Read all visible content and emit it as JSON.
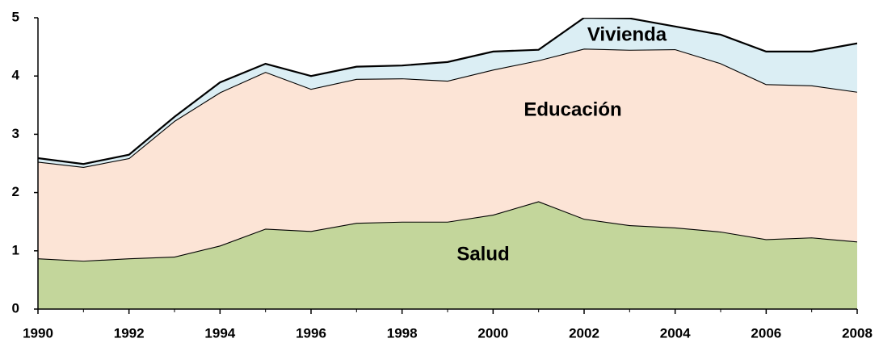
{
  "chart_data": {
    "type": "stacked_area",
    "x": [
      1990,
      1991,
      1992,
      1993,
      1994,
      1995,
      1996,
      1997,
      1998,
      1999,
      2000,
      2001,
      2002,
      2003,
      2004,
      2005,
      2006,
      2007,
      2008
    ],
    "series": [
      {
        "name": "Salud",
        "color": "#c3d69b",
        "values": [
          0.87,
          0.83,
          0.87,
          0.9,
          1.09,
          1.38,
          1.34,
          1.48,
          1.5,
          1.5,
          1.62,
          1.85,
          1.55,
          1.44,
          1.4,
          1.33,
          1.2,
          1.23,
          1.16
        ]
      },
      {
        "name": "Educación",
        "color": "#fce4d6",
        "values": [
          1.66,
          1.61,
          1.72,
          2.33,
          2.63,
          2.69,
          2.44,
          2.47,
          2.46,
          2.42,
          2.49,
          2.42,
          2.92,
          3.01,
          3.06,
          2.89,
          2.66,
          2.61,
          2.57
        ]
      },
      {
        "name": "Vivienda",
        "color": "#dbeef4",
        "values": [
          0.06,
          0.05,
          0.06,
          0.07,
          0.17,
          0.14,
          0.22,
          0.21,
          0.22,
          0.32,
          0.31,
          0.18,
          0.53,
          0.54,
          0.39,
          0.49,
          0.56,
          0.58,
          0.83
        ]
      }
    ],
    "xlim": [
      1990,
      2008
    ],
    "xticks": [
      1990,
      1992,
      1994,
      1996,
      1998,
      2000,
      2002,
      2004,
      2006,
      2008
    ],
    "ylim": [
      0,
      5
    ],
    "yticks": [
      0,
      1,
      2,
      3,
      4,
      5
    ]
  }
}
